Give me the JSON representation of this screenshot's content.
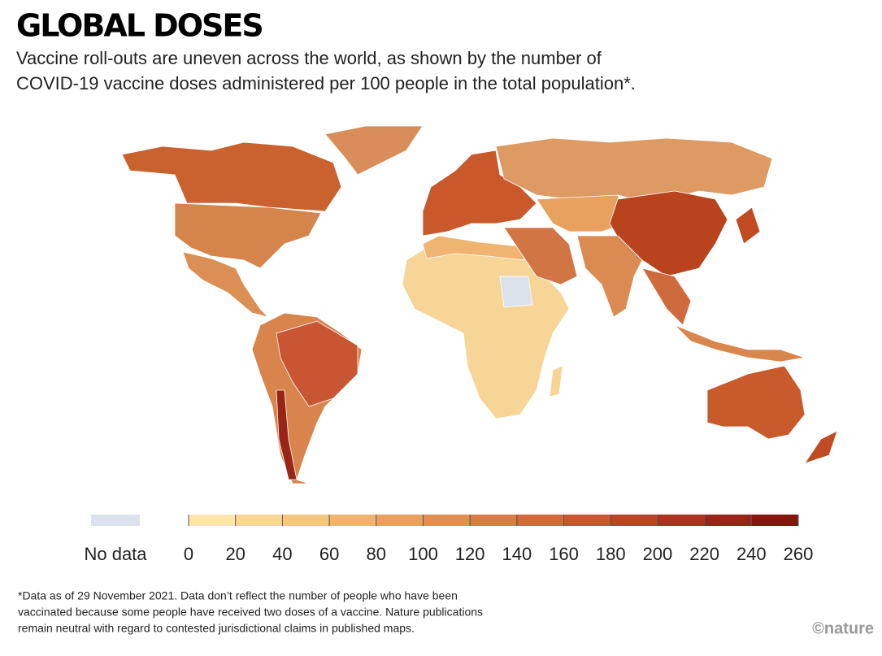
{
  "title": "GLOBAL DOSES",
  "subtitle": [
    "Vaccine roll-outs are uneven across the world, as shown by the number of",
    "COVID-19 vaccine doses administered per 100 people in the total population*."
  ],
  "legend": {
    "no_data_label": "No data",
    "no_data_color": "#dde3ec",
    "ticks": [
      0,
      20,
      40,
      60,
      80,
      100,
      120,
      140,
      160,
      180,
      200,
      220,
      240,
      260
    ],
    "colors": [
      "#fde6ab",
      "#f9d795",
      "#f4c681",
      "#efb46f",
      "#e9a160",
      "#e28f53",
      "#db7c47",
      "#d2693c",
      "#c85632",
      "#bb4428",
      "#ac331f",
      "#9a2416",
      "#86160d"
    ]
  },
  "footnote": [
    "*Data as of 29 November 2021. Data don’t reflect the number of people who have been",
    "vaccinated because some people have received two doses of a vaccine. Nature publications",
    "remain neutral with regard to contested jurisdictional claims in published maps."
  ],
  "credit": "©nature"
}
